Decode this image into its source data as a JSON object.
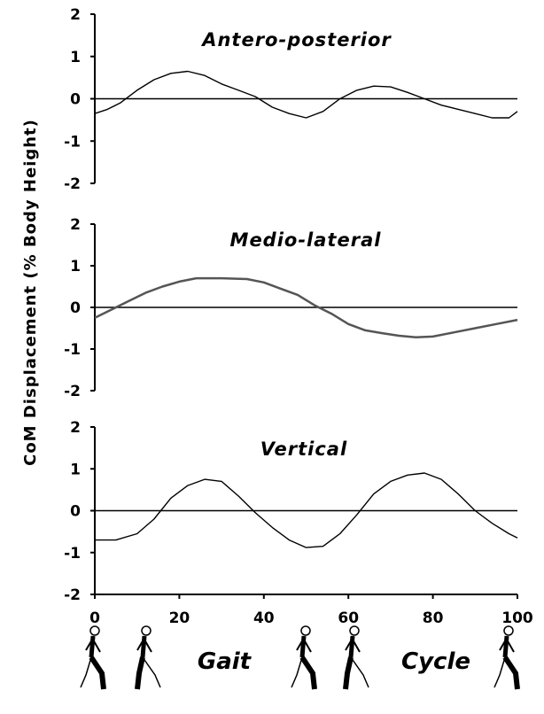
{
  "chart_data": {
    "type": "line",
    "ylabel": "CoM Displacement (% Body Height)",
    "xlabel_words": [
      "Gait",
      "Cycle"
    ],
    "xlim": [
      0,
      100
    ],
    "x_ticks": [
      0,
      20,
      40,
      60,
      80,
      100
    ],
    "panels": [
      {
        "title": "Antero-posterior",
        "ylim": [
          -2,
          2
        ],
        "y_ticks": [
          2,
          1,
          0,
          -1,
          -2
        ],
        "series": [
          {
            "x": [
              0,
              3,
              6,
              10,
              14,
              18,
              22,
              26,
              30,
              34,
              38,
              42,
              46,
              50,
              54,
              58,
              62,
              66,
              70,
              74,
              78,
              82,
              86,
              90,
              94,
              98,
              100
            ],
            "y": [
              -0.35,
              -0.25,
              -0.1,
              0.2,
              0.45,
              0.6,
              0.65,
              0.55,
              0.35,
              0.2,
              0.05,
              -0.2,
              -0.35,
              -0.45,
              -0.3,
              0.0,
              0.2,
              0.3,
              0.28,
              0.15,
              0.0,
              -0.15,
              -0.25,
              -0.35,
              -0.45,
              -0.45,
              -0.3
            ]
          }
        ]
      },
      {
        "title": "Medio-lateral",
        "ylim": [
          -2,
          2
        ],
        "y_ticks": [
          2,
          1,
          0,
          -1,
          -2
        ],
        "series": [
          {
            "x": [
              0,
              4,
              8,
              12,
              16,
              20,
              24,
              30,
              36,
              40,
              44,
              48,
              52,
              56,
              60,
              64,
              68,
              72,
              76,
              80,
              85,
              90,
              95,
              100
            ],
            "y": [
              -0.25,
              -0.05,
              0.15,
              0.35,
              0.5,
              0.62,
              0.7,
              0.7,
              0.68,
              0.6,
              0.45,
              0.3,
              0.05,
              -0.15,
              -0.4,
              -0.55,
              -0.62,
              -0.68,
              -0.72,
              -0.7,
              -0.6,
              -0.5,
              -0.4,
              -0.3
            ]
          }
        ]
      },
      {
        "title": "Vertical",
        "ylim": [
          -2,
          2
        ],
        "y_ticks": [
          2,
          1,
          0,
          -1,
          -2
        ],
        "series": [
          {
            "x": [
              0,
              5,
              10,
              14,
              18,
              22,
              26,
              30,
              34,
              38,
              42,
              46,
              50,
              54,
              58,
              62,
              66,
              70,
              74,
              78,
              82,
              86,
              90,
              94,
              98,
              100
            ],
            "y": [
              -0.7,
              -0.7,
              -0.55,
              -0.2,
              0.3,
              0.6,
              0.75,
              0.7,
              0.35,
              -0.05,
              -0.4,
              -0.7,
              -0.88,
              -0.85,
              -0.55,
              -0.1,
              0.4,
              0.7,
              0.85,
              0.9,
              0.75,
              0.4,
              0.0,
              -0.3,
              -0.55,
              -0.65
            ]
          }
        ]
      }
    ]
  },
  "icons": {
    "walker": "walking-figure-icon"
  }
}
